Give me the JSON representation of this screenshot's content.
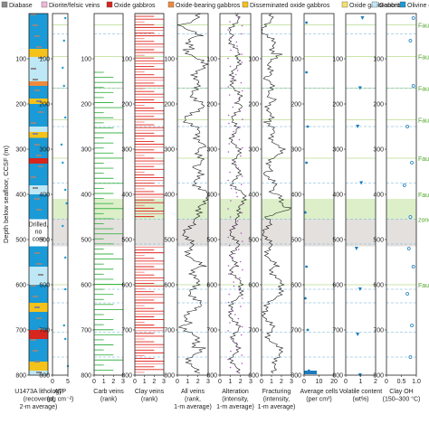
{
  "legend": [
    {
      "label": "Diabase",
      "color": "#8a8a8a"
    },
    {
      "label": "Diorite/felsic veins",
      "color": "#f2b8d8"
    },
    {
      "label": "Oxide gabbros",
      "color": "#d7261e"
    },
    {
      "label": "Oxide-bearing gabbros",
      "color": "#f08a3c"
    },
    {
      "label": "Disseminated oxide gabbros",
      "color": "#f4c21a"
    },
    {
      "label": "Oxide gabbronorite",
      "color": "#f6e16a"
    },
    {
      "label": "Gabbro",
      "color": "#bfe8f6"
    },
    {
      "label": "Olivine gabbro",
      "color": "#1a9ad6"
    }
  ],
  "axis": {
    "ylabel": "Depth below seafloor, CCSF (m)",
    "yticks": [
      "100",
      "200",
      "300",
      "400",
      "500",
      "600",
      "700",
      "800"
    ]
  },
  "no_core_label": [
    "Drilled,",
    "no",
    "core"
  ],
  "fault_labels": [
    "Fault",
    "Fault",
    "Fault",
    "Fault",
    "Fault",
    "Fault",
    "zone",
    "Fault"
  ],
  "panels": [
    {
      "id": "lithology",
      "caption": [
        "U1473A lithology",
        "(recovered",
        "2-m average)"
      ],
      "xticks": []
    },
    {
      "id": "atp",
      "caption": [
        "ATP",
        "(pg cm⁻²)"
      ],
      "xticks": [
        "0",
        "5"
      ]
    },
    {
      "id": "carb",
      "caption": [
        "Carb veins",
        "(rank)"
      ],
      "xticks": [
        "0",
        "1",
        "2",
        "3"
      ]
    },
    {
      "id": "clay",
      "caption": [
        "Clay veins",
        "(rank)"
      ],
      "xticks": [
        "0",
        "1",
        "2",
        "3"
      ]
    },
    {
      "id": "allveins",
      "caption": [
        "All veins",
        "(rank,",
        "1-m average)"
      ],
      "xticks": [
        "0",
        "1",
        "2",
        "3"
      ]
    },
    {
      "id": "alteration",
      "caption": [
        "Alteration",
        "(intensity,",
        "1-m average)"
      ],
      "xticks": [
        "0",
        "1",
        "2",
        "3"
      ]
    },
    {
      "id": "fracturing",
      "caption": [
        "Fracturing",
        "(intensity,",
        "1-m average)"
      ],
      "xticks": [
        "0",
        "1",
        "2",
        "3"
      ]
    },
    {
      "id": "cells",
      "caption": [
        "Average cells",
        "(per cm³)"
      ],
      "xticks": [
        "0",
        "10",
        "20"
      ]
    },
    {
      "id": "volatile",
      "caption": [
        "Volatile content",
        "(wt%)"
      ],
      "xticks": [
        "0",
        "1",
        "2"
      ]
    },
    {
      "id": "clayoh",
      "caption": [
        "Clay OH",
        "(150–300 °C)"
      ],
      "xticks": [
        "0",
        "0.5",
        "1.0"
      ]
    }
  ],
  "chart_data": {
    "type": "line",
    "y_range": [
      0,
      800
    ],
    "y_direction": "depth increases downward",
    "no_core_interval": [
      455,
      515
    ],
    "fault_zone_interval": [
      410,
      455
    ],
    "fault_depths": [
      25,
      95,
      165,
      235,
      320,
      600
    ],
    "dashed_sample_depths": [
      45,
      165,
      250,
      375,
      455,
      510,
      610,
      640,
      705,
      760
    ],
    "lithology_colors": [
      "#8a8a8a",
      "#f2b8d8",
      "#d7261e",
      "#f08a3c",
      "#f4c21a",
      "#f6e16a",
      "#bfe8f6",
      "#1a9ad6"
    ],
    "lithology_intervals": [
      {
        "top": 0,
        "base": 78,
        "unit": "Olivine gabbro"
      },
      {
        "top": 78,
        "base": 96,
        "unit": "Disseminated oxide gabbros"
      },
      {
        "top": 96,
        "base": 150,
        "unit": "Gabbro"
      },
      {
        "top": 150,
        "base": 160,
        "unit": "Oxide-bearing gabbros"
      },
      {
        "top": 160,
        "base": 188,
        "unit": "Olivine gabbro"
      },
      {
        "top": 188,
        "base": 200,
        "unit": "Disseminated oxide gabbros"
      },
      {
        "top": 200,
        "base": 250,
        "unit": "Olivine gabbro"
      },
      {
        "top": 250,
        "base": 262,
        "unit": "Gabbro"
      },
      {
        "top": 262,
        "base": 275,
        "unit": "Disseminated oxide gabbros"
      },
      {
        "top": 275,
        "base": 320,
        "unit": "Olivine gabbro"
      },
      {
        "top": 320,
        "base": 332,
        "unit": "Oxide gabbros"
      },
      {
        "top": 332,
        "base": 380,
        "unit": "Olivine gabbro"
      },
      {
        "top": 380,
        "base": 400,
        "unit": "Gabbro"
      },
      {
        "top": 400,
        "base": 455,
        "unit": "Olivine gabbro"
      },
      {
        "top": 515,
        "base": 560,
        "unit": "Olivine gabbro"
      },
      {
        "top": 560,
        "base": 600,
        "unit": "Gabbro"
      },
      {
        "top": 600,
        "base": 640,
        "unit": "Olivine gabbro"
      },
      {
        "top": 640,
        "base": 660,
        "unit": "Disseminated oxide gabbros"
      },
      {
        "top": 660,
        "base": 700,
        "unit": "Olivine gabbro"
      },
      {
        "top": 700,
        "base": 720,
        "unit": "Oxide gabbros"
      },
      {
        "top": 720,
        "base": 770,
        "unit": "Olivine gabbro"
      },
      {
        "top": 770,
        "base": 790,
        "unit": "Disseminated oxide gabbros"
      },
      {
        "top": 790,
        "base": 800,
        "unit": "Gabbro"
      }
    ],
    "atp": {
      "xlim": [
        0,
        6
      ],
      "points": [
        [
          5,
          10
        ],
        [
          4.5,
          60
        ],
        [
          4,
          120
        ],
        [
          4.5,
          160
        ],
        [
          5,
          230
        ],
        [
          3.5,
          290
        ],
        [
          4,
          330
        ],
        [
          5,
          390
        ],
        [
          5.5,
          420
        ],
        [
          4,
          470
        ],
        [
          5,
          540
        ],
        [
          5,
          610
        ],
        [
          4.5,
          690
        ],
        [
          5,
          720
        ],
        [
          6,
          780
        ]
      ]
    },
    "carb_veins": {
      "xlim": [
        0,
        3
      ],
      "count": 60,
      "depth_range": [
        130,
        800
      ]
    },
    "clay_veins": {
      "xlim": [
        0,
        3
      ],
      "count": 130,
      "depth_range": [
        0,
        800
      ]
    },
    "all_veins": {
      "xlim": [
        0,
        3
      ],
      "profile": [
        [
          0,
          2.0
        ],
        [
          25,
          0.6
        ],
        [
          50,
          1.8
        ],
        [
          80,
          1.2
        ],
        [
          120,
          2.5
        ],
        [
          160,
          1.5
        ],
        [
          200,
          2.2
        ],
        [
          240,
          1.0
        ],
        [
          290,
          2.8
        ],
        [
          340,
          1.6
        ],
        [
          380,
          2.2
        ],
        [
          420,
          3.0
        ],
        [
          455,
          1.2
        ],
        [
          515,
          1.0
        ],
        [
          560,
          2.1
        ],
        [
          600,
          1.5
        ],
        [
          640,
          1.9
        ],
        [
          690,
          0.8
        ],
        [
          740,
          2.0
        ],
        [
          780,
          1.3
        ],
        [
          800,
          1.6
        ]
      ]
    },
    "alteration": {
      "xlim": [
        0,
        3
      ],
      "profile": [
        [
          0,
          1.6
        ],
        [
          50,
          1.2
        ],
        [
          100,
          1.6
        ],
        [
          150,
          1.4
        ],
        [
          200,
          1.8
        ],
        [
          260,
          1.3
        ],
        [
          320,
          1.7
        ],
        [
          380,
          1.5
        ],
        [
          420,
          2.5
        ],
        [
          455,
          1.2
        ],
        [
          515,
          1.5
        ],
        [
          560,
          1.3
        ],
        [
          610,
          1.9
        ],
        [
          660,
          1.2
        ],
        [
          700,
          1.6
        ],
        [
          760,
          1.4
        ],
        [
          800,
          1.5
        ]
      ]
    },
    "fracturing": {
      "xlim": [
        0,
        3
      ],
      "profile": [
        [
          0,
          0.8
        ],
        [
          40,
          0.3
        ],
        [
          90,
          1.6
        ],
        [
          140,
          0.4
        ],
        [
          190,
          1.2
        ],
        [
          240,
          0.5
        ],
        [
          300,
          1.8
        ],
        [
          350,
          0.6
        ],
        [
          400,
          1.3
        ],
        [
          430,
          2.8
        ],
        [
          455,
          0.5
        ],
        [
          515,
          0.6
        ],
        [
          560,
          1.2
        ],
        [
          610,
          1.8
        ],
        [
          660,
          0.5
        ],
        [
          720,
          1.0
        ],
        [
          760,
          2.0
        ],
        [
          800,
          0.5
        ]
      ]
    },
    "average_cells": {
      "xlim": [
        0,
        25
      ],
      "points": [
        [
          2,
          20
        ],
        [
          2,
          130
        ],
        [
          3,
          250
        ],
        [
          2,
          330
        ],
        [
          1,
          440
        ],
        [
          2,
          560
        ],
        [
          1,
          630
        ],
        [
          3,
          700
        ],
        [
          4,
          790
        ]
      ]
    },
    "volatile_content": {
      "xlim": [
        0,
        2.5
      ],
      "points": [
        [
          1.4,
          10
        ],
        [
          1.2,
          165
        ],
        [
          1.0,
          250
        ],
        [
          1.3,
          375
        ],
        [
          0.9,
          520
        ],
        [
          1.2,
          610
        ],
        [
          1.0,
          710
        ],
        [
          1.2,
          800
        ]
      ]
    },
    "clay_oh": {
      "xlim": [
        0,
        1
      ],
      "points": [
        [
          0.9,
          10
        ],
        [
          0.8,
          60
        ],
        [
          0.9,
          160
        ],
        [
          0.7,
          250
        ],
        [
          0.85,
          330
        ],
        [
          0.6,
          380
        ],
        [
          0.8,
          450
        ],
        [
          0.75,
          520
        ],
        [
          0.9,
          560
        ],
        [
          0.7,
          620
        ],
        [
          0.85,
          690
        ],
        [
          0.8,
          760
        ]
      ]
    }
  }
}
